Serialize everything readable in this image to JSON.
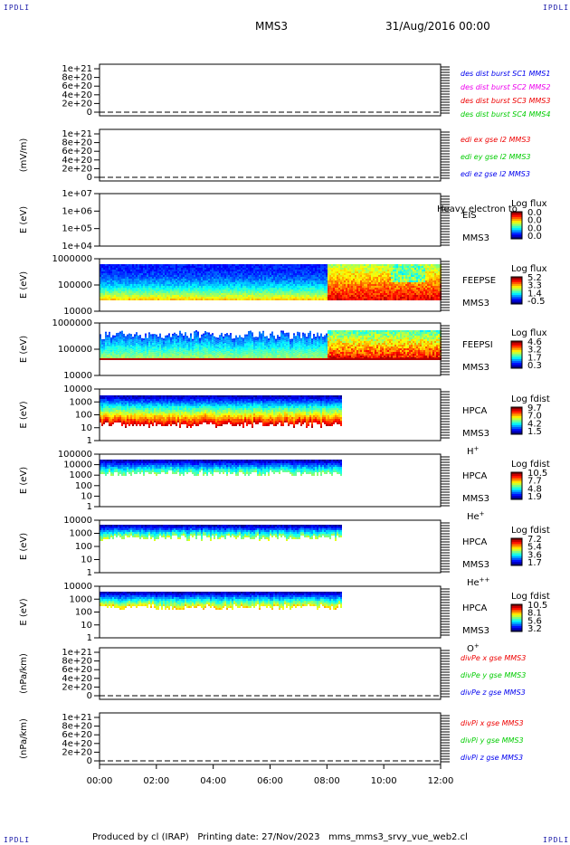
{
  "header": {
    "corner_left_top": "IPDLI",
    "corner_right_top": "IPDLI",
    "corner_left_bottom": "IPDLI",
    "corner_right_bottom": "IPDLI",
    "mission": "MMS3",
    "date_time": "31/Aug/2016 00:00"
  },
  "footer": {
    "produced_by": "Produced by cl (IRAP)",
    "printing_date": "Printing date: 27/Nov/2023",
    "script_name": "mms_mms3_srvy_vue_web2.cl"
  },
  "x_ticks": [
    "00:00",
    "02:00",
    "04:00",
    "06:00",
    "08:00",
    "10:00",
    "12:00"
  ],
  "colors": {
    "c_black": "#000000",
    "c_blue": "#0000ee",
    "c_magenta": "#ee00ee",
    "c_red": "#ee0000",
    "c_green": "#00cc00"
  },
  "chart_data": [
    {
      "type": "line",
      "panel": "des-dist",
      "ylabel": "",
      "ytick_labels": [
        "1e+21",
        "8e+20",
        "6e+20",
        "4e+20",
        "2e+20",
        "0"
      ],
      "ylim": [
        0,
        1.2e+21
      ],
      "series": [
        {
          "name": "des dist burst SC1 MMS1",
          "color": "#0000ee",
          "values": []
        },
        {
          "name": "des dist burst SC2 MMS2",
          "color": "#ee00ee",
          "values": []
        },
        {
          "name": "des dist burst SC3 MMS3",
          "color": "#ee0000",
          "values": []
        },
        {
          "name": "des dist burst SC4 MMS4",
          "color": "#00cc00",
          "values": []
        }
      ]
    },
    {
      "type": "line",
      "panel": "edi",
      "ylabel": "(mV/m)",
      "ytick_labels": [
        "1e+21",
        "8e+20",
        "6e+20",
        "4e+20",
        "2e+20",
        "0"
      ],
      "ylim": [
        0,
        1.2e+21
      ],
      "series": [
        {
          "name": "edi ex gse l2 MMS3",
          "color": "#ee0000",
          "values": []
        },
        {
          "name": "edi ey gse l2 MMS3",
          "color": "#00cc00",
          "values": []
        },
        {
          "name": "edi ez gse l2 MMS3",
          "color": "#0000ee",
          "values": []
        }
      ]
    },
    {
      "type": "heatmap",
      "panel": "eis",
      "ylabel": "E (eV)",
      "ytick_labels": [
        "1e+07",
        "1e+06",
        "1e+05",
        "1e+04"
      ],
      "inst": "EIS",
      "sc": "MMS3",
      "sub": "",
      "overlay": "Heavy electron to",
      "cb_title": "Log flux",
      "cb_ticks": [
        "0.0",
        "0.0",
        "0.0",
        "0.0"
      ]
    },
    {
      "type": "heatmap",
      "panel": "feepse",
      "ylabel": "E (eV)",
      "ytick_labels": [
        "1000000",
        "100000",
        "10000"
      ],
      "inst": "FEEPSE",
      "sc": "MMS3",
      "sub": "",
      "overlay": "",
      "cb_title": "Log flux",
      "cb_ticks": [
        "5.2",
        "3.3",
        "1.4",
        "-0.5"
      ]
    },
    {
      "type": "heatmap",
      "panel": "feepsi",
      "ylabel": "E (eV)",
      "ytick_labels": [
        "1000000",
        "100000",
        "10000"
      ],
      "inst": "FEEPSI",
      "sc": "MMS3",
      "sub": "",
      "overlay": "",
      "cb_title": "Log flux",
      "cb_ticks": [
        "4.6",
        "3.2",
        "1.7",
        "0.3"
      ]
    },
    {
      "type": "heatmap",
      "panel": "hpca-h",
      "ylabel": "E (eV)",
      "ytick_labels": [
        "10000",
        "1000",
        "100",
        "10",
        "1"
      ],
      "inst": "HPCA",
      "sc": "MMS3",
      "sub": "H",
      "sup": "+",
      "overlay": "",
      "cb_title": "Log fdist",
      "cb_ticks": [
        "9.7",
        "7.0",
        "4.2",
        "1.5"
      ]
    },
    {
      "type": "heatmap",
      "panel": "hpca-he",
      "ylabel": "E (eV)",
      "ytick_labels": [
        "100000",
        "10000",
        "1000",
        "100",
        "10",
        "1"
      ],
      "inst": "HPCA",
      "sc": "MMS3",
      "sub": "He",
      "sup": "+",
      "overlay": "",
      "cb_title": "Log fdist",
      "cb_ticks": [
        "10.5",
        "7.7",
        "4.8",
        "1.9"
      ]
    },
    {
      "type": "heatmap",
      "panel": "hpca-hepp",
      "ylabel": "E (eV)",
      "ytick_labels": [
        "10000",
        "1000",
        "100",
        "10",
        "1"
      ],
      "inst": "HPCA",
      "sc": "MMS3",
      "sub": "He",
      "sup": "++",
      "overlay": "",
      "cb_title": "Log fdist",
      "cb_ticks": [
        "7.2",
        "5.4",
        "3.6",
        "1.7"
      ]
    },
    {
      "type": "heatmap",
      "panel": "hpca-o",
      "ylabel": "E (eV)",
      "ytick_labels": [
        "10000",
        "1000",
        "100",
        "10",
        "1"
      ],
      "inst": "HPCA",
      "sc": "MMS3",
      "sub": "O",
      "sup": "+",
      "overlay": "",
      "cb_title": "Log fdist",
      "cb_ticks": [
        "10.5",
        "8.1",
        "5.6",
        "3.2"
      ]
    },
    {
      "type": "line",
      "panel": "divpe",
      "ylabel": "(nPa/km)",
      "ytick_labels": [
        "1e+21",
        "8e+20",
        "6e+20",
        "4e+20",
        "2e+20",
        "0"
      ],
      "ylim": [
        0,
        1.2e+21
      ],
      "series": [
        {
          "name": "divPe x gse MMS3",
          "color": "#ee0000",
          "values": []
        },
        {
          "name": "divPe y gse MMS3",
          "color": "#00cc00",
          "values": []
        },
        {
          "name": "divPe z gse MMS3",
          "color": "#0000ee",
          "values": []
        }
      ]
    },
    {
      "type": "line",
      "panel": "divpi",
      "ylabel": "(nPa/km)",
      "ytick_labels": [
        "1e+21",
        "8e+20",
        "6e+20",
        "4e+20",
        "2e+20",
        "0"
      ],
      "ylim": [
        0,
        1.2e+21
      ],
      "series": [
        {
          "name": "divPi x gse MMS3",
          "color": "#ee0000",
          "values": []
        },
        {
          "name": "divPi y gse MMS3",
          "color": "#00cc00",
          "values": []
        },
        {
          "name": "divPi z gse MMS3",
          "color": "#0000ee",
          "values": []
        }
      ]
    }
  ]
}
